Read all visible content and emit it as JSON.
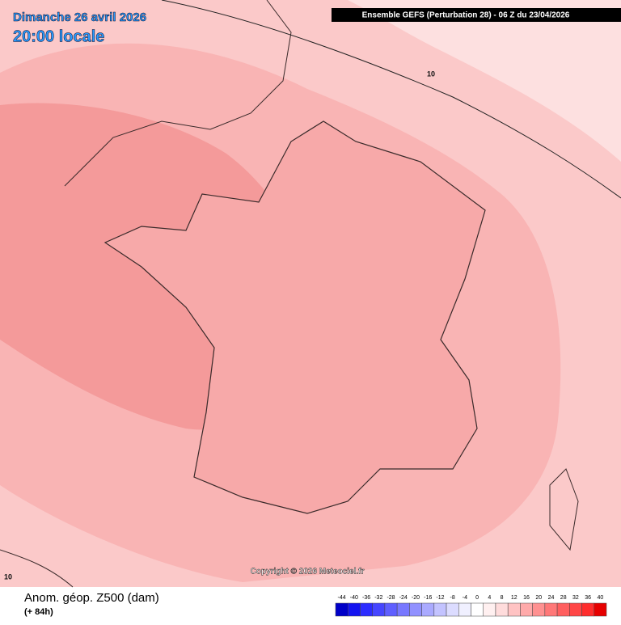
{
  "header": {
    "date": "Dimanche 26 avril 2026",
    "time": "20:00 locale",
    "model": "Ensemble GEFS  (Perturbation 28)  -  06 Z du 23/04/2026"
  },
  "map": {
    "contour_labels": [
      "10",
      "10"
    ],
    "copyright": "Copyright © 2026 Meteociel.fr"
  },
  "legend": {
    "title": "Anom. géop. Z500 (dam)",
    "lead": "(+ 84h)",
    "ticks": [
      -44,
      -40,
      -36,
      -32,
      -28,
      -24,
      -20,
      -16,
      -12,
      -8,
      -4,
      0,
      4,
      8,
      12,
      16,
      20,
      24,
      28,
      32,
      36,
      40
    ],
    "colors": [
      "#0000c8",
      "#1414f0",
      "#2d2dff",
      "#4646ff",
      "#5f5fff",
      "#7878ff",
      "#9191ff",
      "#aaaaff",
      "#c3c3ff",
      "#dcdcff",
      "#f0f0ff",
      "#ffffff",
      "#fff0f0",
      "#ffdcdc",
      "#ffc3c3",
      "#ffaaaa",
      "#ff9191",
      "#ff7878",
      "#ff5f5f",
      "#ff4646",
      "#ff2d2d",
      "#e60000"
    ]
  }
}
